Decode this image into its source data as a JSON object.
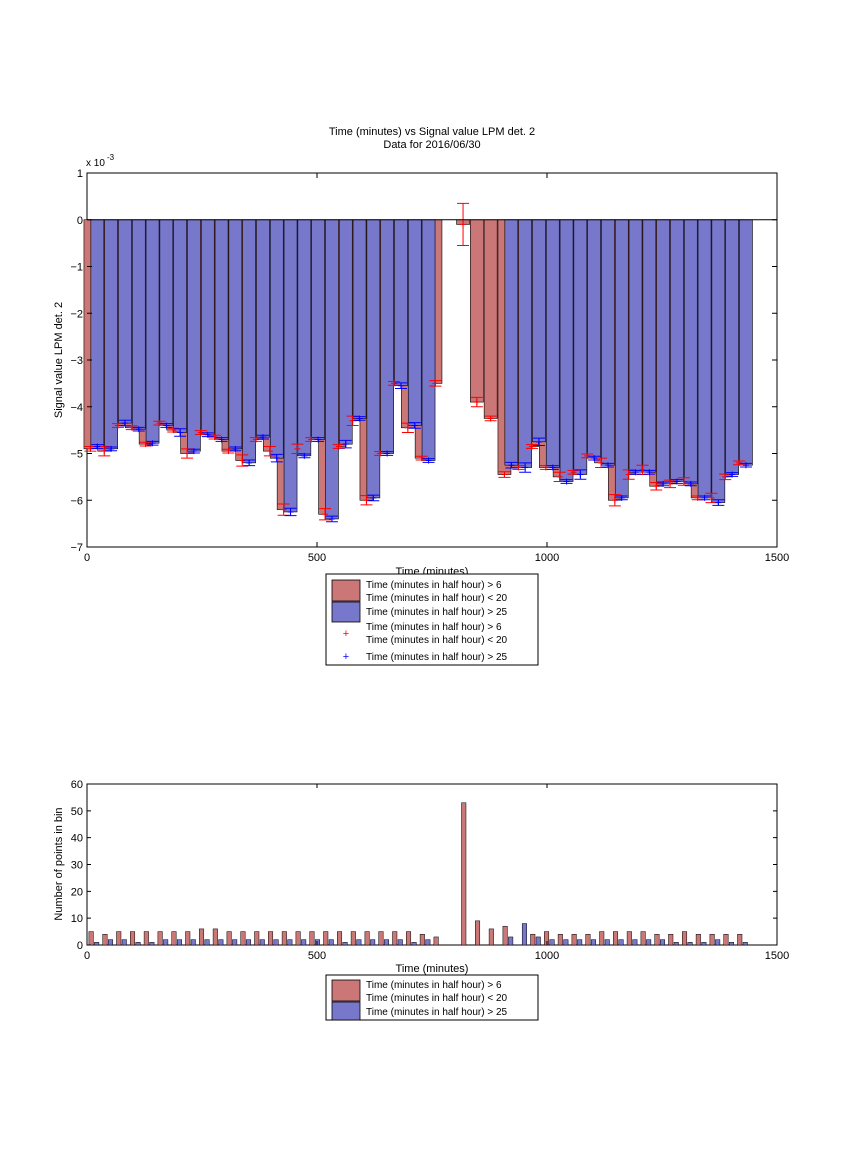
{
  "colors": {
    "red_bar": "#cc7777",
    "blue_bar": "#7777cc",
    "red_marker": "#ff0000",
    "blue_marker": "#0000ff"
  },
  "chart_data": [
    {
      "type": "bar",
      "title": "Time (minutes) vs Signal value LPM det. 2",
      "subtitle": "Data for 2016/06/30",
      "xlabel": "Time (minutes)",
      "ylabel": "Signal value LPM det. 2",
      "y_exponent_label": "x 10",
      "y_exponent_power": "-3",
      "xlim": [
        0,
        1500
      ],
      "ylim": [
        -7,
        1
      ],
      "xticks": [
        0,
        500,
        1000,
        1500
      ],
      "yticks": [
        -7,
        -6,
        -5,
        -4,
        -3,
        -2,
        -1,
        0,
        1
      ],
      "grid": false,
      "legend_position": "below",
      "legend": [
        {
          "label": "Time (minutes in half hour) > 6\nTime (minutes in half hour) < 20",
          "kind": "bar",
          "series": "red"
        },
        {
          "label": "Time (minutes in half hour) > 25",
          "kind": "bar",
          "series": "blue"
        },
        {
          "label": "Time (minutes in half hour) > 6\nTime (minutes in half hour) < 20",
          "kind": "marker",
          "series": "red"
        },
        {
          "label": "Time (minutes in half hour) > 25",
          "kind": "marker",
          "series": "blue"
        }
      ],
      "x": [
        15,
        45,
        75,
        105,
        135,
        165,
        195,
        225,
        255,
        285,
        315,
        345,
        375,
        405,
        435,
        465,
        495,
        525,
        555,
        585,
        615,
        645,
        675,
        705,
        735,
        765,
        795,
        825,
        855,
        885,
        915,
        945,
        975,
        1005,
        1035,
        1065,
        1095,
        1125,
        1155,
        1185,
        1215,
        1245,
        1275,
        1305,
        1335,
        1365,
        1395,
        1425
      ],
      "series": [
        {
          "key": "red",
          "values": [
            -4.9,
            -4.95,
            -4.4,
            -4.45,
            -4.8,
            -4.35,
            -4.5,
            -5.0,
            -4.55,
            -4.65,
            -4.95,
            -5.15,
            -4.7,
            -4.95,
            -6.2,
            -4.9,
            -4.7,
            -6.3,
            -4.85,
            -4.3,
            -6.0,
            -5.0,
            -3.5,
            -4.45,
            -5.1,
            -3.5,
            null,
            -0.1,
            -3.9,
            -4.25,
            -5.45,
            -5.3,
            -4.85,
            -5.3,
            -5.5,
            -5.4,
            -5.05,
            -5.2,
            -6.0,
            -5.45,
            -5.35,
            -5.7,
            -5.65,
            -5.6,
            -5.95,
            -5.95,
            -5.5,
            -5.2
          ],
          "errors": [
            0.05,
            0.1,
            0.04,
            0.04,
            0.04,
            0.04,
            0.04,
            0.1,
            0.04,
            0.04,
            0.04,
            0.12,
            0.04,
            0.1,
            0.12,
            0.1,
            0.04,
            0.12,
            0.04,
            0.1,
            0.1,
            0.04,
            0.04,
            0.1,
            0.04,
            0.06,
            null,
            0.45,
            0.1,
            0.05,
            0.06,
            0.04,
            0.04,
            0.04,
            0.1,
            0.04,
            0.04,
            0.1,
            0.12,
            0.1,
            0.1,
            0.08,
            0.08,
            0.08,
            0.04,
            0.1,
            0.06,
            0.04
          ]
        },
        {
          "key": "blue",
          "values": [
            -4.85,
            -4.9,
            -4.35,
            -4.48,
            -4.78,
            -4.4,
            -4.55,
            -4.95,
            -4.6,
            -4.7,
            -4.9,
            -5.2,
            -4.65,
            -5.1,
            -6.25,
            -5.05,
            -4.7,
            -6.4,
            -4.8,
            -4.25,
            -5.95,
            -5.0,
            -3.55,
            -4.4,
            -5.15,
            null,
            null,
            null,
            null,
            null,
            -5.25,
            -5.3,
            -4.75,
            -5.3,
            -5.6,
            -5.45,
            -5.1,
            -5.25,
            -5.95,
            -5.4,
            -5.4,
            -5.65,
            -5.6,
            -5.65,
            -5.95,
            -6.05,
            -5.45,
            -5.25
          ],
          "errors": [
            0.04,
            0.04,
            0.06,
            0.04,
            0.04,
            0.04,
            0.08,
            0.04,
            0.04,
            0.04,
            0.04,
            0.06,
            0.04,
            0.08,
            0.08,
            0.04,
            0.04,
            0.06,
            0.08,
            0.04,
            0.06,
            0.04,
            0.06,
            0.06,
            0.04,
            null,
            null,
            null,
            null,
            null,
            0.06,
            0.1,
            0.08,
            0.04,
            0.04,
            0.1,
            0.04,
            0.04,
            0.04,
            0.04,
            0.04,
            0.04,
            0.04,
            0.04,
            0.04,
            0.06,
            0.04,
            0.04
          ]
        }
      ]
    },
    {
      "type": "bar",
      "xlabel": "Time (minutes)",
      "ylabel": "Number of points in bin",
      "xlim": [
        0,
        1500
      ],
      "ylim": [
        0,
        60
      ],
      "xticks": [
        0,
        500,
        1000,
        1500
      ],
      "yticks": [
        0,
        10,
        20,
        30,
        40,
        50,
        60
      ],
      "grid": false,
      "legend_position": "below",
      "legend": [
        {
          "label": "Time (minutes in half hour) > 6\nTime (minutes in half hour) < 20",
          "series": "red"
        },
        {
          "label": "Time (minutes in half hour) > 25",
          "series": "blue"
        }
      ],
      "x": [
        15,
        45,
        75,
        105,
        135,
        165,
        195,
        225,
        255,
        285,
        315,
        345,
        375,
        405,
        435,
        465,
        495,
        525,
        555,
        585,
        615,
        645,
        675,
        705,
        735,
        765,
        795,
        825,
        855,
        885,
        915,
        945,
        975,
        1005,
        1035,
        1065,
        1095,
        1125,
        1155,
        1185,
        1215,
        1245,
        1275,
        1305,
        1335,
        1365,
        1395,
        1425
      ],
      "series": [
        {
          "key": "red",
          "values": [
            5,
            4,
            5,
            5,
            5,
            5,
            5,
            5,
            6,
            6,
            5,
            5,
            5,
            5,
            5,
            5,
            5,
            5,
            5,
            5,
            5,
            5,
            5,
            5,
            4,
            3,
            0,
            53,
            9,
            6,
            7,
            0,
            4,
            5,
            4,
            4,
            4,
            5,
            5,
            5,
            5,
            4,
            4,
            5,
            4,
            4,
            4,
            4
          ]
        },
        {
          "key": "blue",
          "values": [
            1,
            2,
            2,
            1,
            1,
            2,
            2,
            2,
            2,
            2,
            2,
            2,
            2,
            2,
            2,
            2,
            2,
            2,
            1,
            2,
            2,
            2,
            2,
            1,
            2,
            0,
            0,
            0,
            0,
            0,
            3,
            8,
            3,
            2,
            2,
            2,
            2,
            2,
            2,
            2,
            2,
            2,
            1,
            1,
            1,
            2,
            1,
            1
          ]
        }
      ]
    }
  ]
}
